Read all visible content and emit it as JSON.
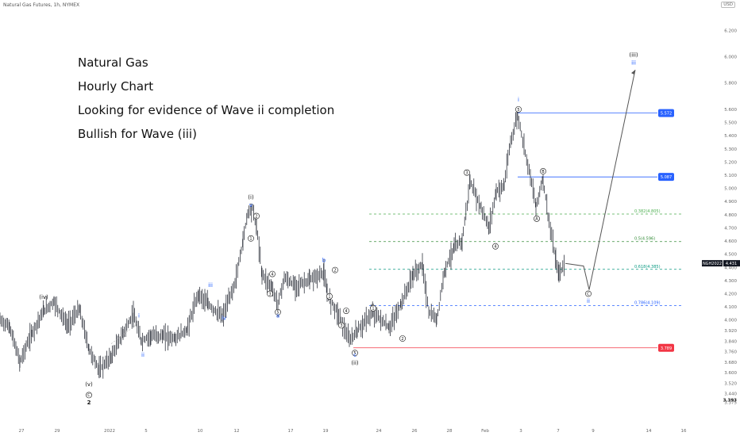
{
  "header": {
    "symbol_line": "Natural Gas Futures, 1h, NYMEX",
    "currency": "USD"
  },
  "notes": [
    "Natural Gas",
    "Hourly Chart",
    "Looking for evidence of Wave ii completion",
    "Bullish for Wave (iii)"
  ],
  "chart_data": {
    "type": "line",
    "title": "Natural Gas Futures, 1h, NYMEX",
    "y_unit": "USD",
    "ylim": [
      3.375,
      6.3
    ],
    "y_ticks": [
      3.375,
      3.44,
      3.52,
      3.6,
      3.68,
      3.76,
      3.84,
      3.92,
      4.0,
      4.1,
      4.2,
      4.3,
      4.4,
      4.5,
      4.6,
      4.7,
      4.8,
      4.9,
      5.0,
      5.1,
      5.2,
      5.3,
      5.4,
      5.5,
      5.6,
      5.8,
      6.0,
      6.2
    ],
    "x_ticks": [
      "27",
      "29",
      "2022",
      "5",
      "10",
      "12",
      "17",
      "19",
      "24",
      "26",
      "28",
      "Feb",
      "3",
      "7",
      "9",
      "14",
      "16"
    ],
    "current_price": {
      "label": "NGH2022",
      "value": 4.431
    },
    "low_marker": 3.393,
    "price_path": {
      "x": [
        0,
        12,
        25,
        40,
        55,
        68,
        85,
        100,
        112,
        125,
        140,
        155,
        168,
        178,
        190,
        205,
        220,
        235,
        250,
        262,
        280,
        296,
        306,
        312,
        318,
        323,
        330,
        342,
        350,
        358,
        372,
        390,
        408,
        412,
        425,
        432,
        440,
        450,
        470,
        490,
        505,
        520,
        532,
        540,
        550,
        560,
        572,
        582,
        592,
        606,
        616,
        625,
        635,
        643,
        652,
        660,
        668,
        675,
        684,
        690,
        700,
        704,
        712
      ],
      "y": [
        4.0,
        3.95,
        3.68,
        3.9,
        4.07,
        4.14,
        3.96,
        4.08,
        3.78,
        3.62,
        3.72,
        3.9,
        4.04,
        3.84,
        3.88,
        3.88,
        3.86,
        3.92,
        4.2,
        4.12,
        4.02,
        4.28,
        4.6,
        4.82,
        4.85,
        4.72,
        4.35,
        4.25,
        4.12,
        4.32,
        4.26,
        4.3,
        4.36,
        4.2,
        4.06,
        3.96,
        3.84,
        3.92,
        4.06,
        3.94,
        4.12,
        4.34,
        4.42,
        4.06,
        4.0,
        4.38,
        4.55,
        4.6,
        5.05,
        4.85,
        4.7,
        4.98,
        5.02,
        5.35,
        5.56,
        5.32,
        5.1,
        4.86,
        5.08,
        4.8,
        4.45,
        4.35,
        4.43
      ]
    },
    "projection": {
      "x": [
        712,
        735,
        742,
        800
      ],
      "y": [
        4.43,
        4.41,
        4.23,
        5.9
      ]
    },
    "levels": [
      {
        "label": "5.572",
        "value": 5.572,
        "color": "#2962ff",
        "kind": "box"
      },
      {
        "label": "5.087",
        "value": 5.087,
        "color": "#2962ff",
        "kind": "box"
      },
      {
        "label": "3.789",
        "value": 3.789,
        "color": "#f23645",
        "kind": "box"
      },
      {
        "label": "0.382(4.805)",
        "value": 4.805,
        "color": "#4caf50",
        "kind": "fib"
      },
      {
        "label": "0.5(4.596)",
        "value": 4.596,
        "color": "#388e3c",
        "kind": "fib"
      },
      {
        "label": "0.618(4.385)",
        "value": 4.385,
        "color": "#089981",
        "kind": "fib"
      },
      {
        "label": "0.786(4.109)",
        "value": 4.109,
        "color": "#2962ff",
        "kind": "fib"
      }
    ],
    "wave_labels": [
      {
        "text": "(iv)",
        "x": 55,
        "y": 4.16,
        "color": "#111",
        "style": "text"
      },
      {
        "text": "(v)",
        "x": 112,
        "y": 3.5,
        "color": "#111",
        "style": "text"
      },
      {
        "text": "C",
        "x": 112,
        "y": 3.43,
        "color": "#111",
        "style": "circle"
      },
      {
        "text": "2",
        "x": 112,
        "y": 3.36,
        "color": "#111",
        "style": "bold"
      },
      {
        "text": "i",
        "x": 175,
        "y": 4.02,
        "color": "#2962ff",
        "style": "text"
      },
      {
        "text": "ii",
        "x": 180,
        "y": 3.72,
        "color": "#2962ff",
        "style": "text"
      },
      {
        "text": "iii",
        "x": 265,
        "y": 4.25,
        "color": "#2962ff",
        "style": "text"
      },
      {
        "text": "iv",
        "x": 282,
        "y": 4.0,
        "color": "#2962ff",
        "style": "text"
      },
      {
        "text": "(i)",
        "x": 316,
        "y": 4.92,
        "color": "#111",
        "style": "text"
      },
      {
        "text": "v",
        "x": 316,
        "y": 4.86,
        "color": "#2962ff",
        "style": "text"
      },
      {
        "text": "2",
        "x": 323,
        "y": 4.79,
        "color": "#111",
        "style": "circle"
      },
      {
        "text": "1",
        "x": 316,
        "y": 4.62,
        "color": "#111",
        "style": "circle"
      },
      {
        "text": "4",
        "x": 343,
        "y": 4.35,
        "color": "#111",
        "style": "circle"
      },
      {
        "text": "3",
        "x": 340,
        "y": 4.2,
        "color": "#111",
        "style": "circle"
      },
      {
        "text": "5",
        "x": 350,
        "y": 4.06,
        "color": "#111",
        "style": "circle"
      },
      {
        "text": "a",
        "x": 350,
        "y": 4.02,
        "color": "#2962ff",
        "style": "text"
      },
      {
        "text": "b",
        "x": 408,
        "y": 4.44,
        "color": "#2962ff",
        "style": "text"
      },
      {
        "text": "2",
        "x": 422,
        "y": 4.38,
        "color": "#111",
        "style": "circle"
      },
      {
        "text": "1",
        "x": 415,
        "y": 4.18,
        "color": "#111",
        "style": "circle"
      },
      {
        "text": "4",
        "x": 436,
        "y": 4.07,
        "color": "#111",
        "style": "circle"
      },
      {
        "text": "3",
        "x": 430,
        "y": 3.96,
        "color": "#111",
        "style": "circle"
      },
      {
        "text": "5",
        "x": 447,
        "y": 3.75,
        "color": "#111",
        "style": "circle"
      },
      {
        "text": "c",
        "x": 447,
        "y": 3.72,
        "color": "#2962ff",
        "style": "text"
      },
      {
        "text": "(ii)",
        "x": 447,
        "y": 3.66,
        "color": "#111",
        "style": "text"
      },
      {
        "text": "1",
        "x": 470,
        "y": 4.09,
        "color": "#111",
        "style": "circle"
      },
      {
        "text": "2",
        "x": 507,
        "y": 3.86,
        "color": "#111",
        "style": "circle"
      },
      {
        "text": "3",
        "x": 588,
        "y": 5.12,
        "color": "#111",
        "style": "circle"
      },
      {
        "text": "4",
        "x": 624,
        "y": 4.56,
        "color": "#111",
        "style": "circle"
      },
      {
        "text": "i",
        "x": 653,
        "y": 5.66,
        "color": "#2962ff",
        "style": "text"
      },
      {
        "text": "5",
        "x": 653,
        "y": 5.6,
        "color": "#111",
        "style": "circle"
      },
      {
        "text": "B",
        "x": 684,
        "y": 5.13,
        "color": "#111",
        "style": "circle"
      },
      {
        "text": "A",
        "x": 676,
        "y": 4.77,
        "color": "#111",
        "style": "circle"
      },
      {
        "text": "C",
        "x": 741,
        "y": 4.2,
        "color": "#111",
        "style": "circle"
      },
      {
        "text": "ii",
        "x": 741,
        "y": 4.13,
        "color": "#2962ff",
        "style": "text"
      },
      {
        "text": "(iii)",
        "x": 798,
        "y": 6.0,
        "color": "#111",
        "style": "text"
      },
      {
        "text": "iii",
        "x": 798,
        "y": 5.94,
        "color": "#2962ff",
        "style": "text"
      }
    ]
  }
}
